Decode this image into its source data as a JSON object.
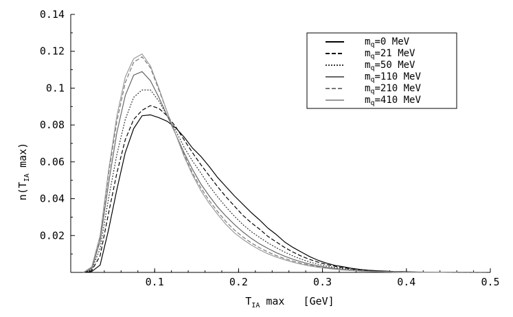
{
  "chart_data": {
    "type": "line",
    "title": "",
    "xlabel": "T_IA max [GeV]",
    "xlabel_parts": {
      "t": "T",
      "sub": "IA",
      "rest": " max   [GeV]"
    },
    "ylabel": "n(T_IA max)",
    "ylabel_parts": {
      "pre": "n(T",
      "sub": "IA",
      "post": " max)"
    },
    "xlim": [
      0.0,
      0.5
    ],
    "ylim": [
      0.0,
      0.14
    ],
    "xticks": [
      {
        "value": 0.1,
        "label": "0.1"
      },
      {
        "value": 0.2,
        "label": "0.2"
      },
      {
        "value": 0.3,
        "label": "0.3"
      },
      {
        "value": 0.4,
        "label": "0.4"
      },
      {
        "value": 0.5,
        "label": "0.5"
      }
    ],
    "yticks": [
      {
        "value": 0.02,
        "label": "0.02"
      },
      {
        "value": 0.04,
        "label": "0.04"
      },
      {
        "value": 0.06,
        "label": "0.06"
      },
      {
        "value": 0.08,
        "label": "0.08"
      },
      {
        "value": 0.1,
        "label": "0.1"
      },
      {
        "value": 0.12,
        "label": "0.12"
      },
      {
        "value": 0.14,
        "label": "0.14"
      }
    ],
    "grid": false,
    "legend_position": "top-right",
    "x": [
      0.015,
      0.025,
      0.035,
      0.045,
      0.055,
      0.065,
      0.075,
      0.085,
      0.095,
      0.105,
      0.115,
      0.125,
      0.135,
      0.145,
      0.155,
      0.165,
      0.175,
      0.185,
      0.195,
      0.205,
      0.215,
      0.225,
      0.235,
      0.245,
      0.255,
      0.265,
      0.275,
      0.285,
      0.295,
      0.305,
      0.315,
      0.325,
      0.335,
      0.345,
      0.355,
      0.365,
      0.375,
      0.385,
      0.395,
      0.405,
      0.415,
      0.425,
      0.435,
      0.445,
      0.455,
      0.465,
      0.475,
      0.485,
      0.495
    ],
    "series": [
      {
        "label_sub": "q",
        "label_value": "0 MeV",
        "color": "#000000",
        "dash": "",
        "values": [
          0.0,
          0.0005,
          0.004,
          0.023,
          0.045,
          0.065,
          0.078,
          0.085,
          0.0855,
          0.084,
          0.082,
          0.0785,
          0.0735,
          0.0675,
          0.063,
          0.0575,
          0.0515,
          0.0465,
          0.0415,
          0.037,
          0.0325,
          0.0285,
          0.024,
          0.0205,
          0.0165,
          0.0135,
          0.011,
          0.0085,
          0.0065,
          0.005,
          0.0038,
          0.003,
          0.0022,
          0.0016,
          0.0012,
          0.0009,
          0.0007,
          0.0005,
          0.0004,
          0.0003,
          0.0002,
          0.00015,
          0.0001,
          7e-05,
          5e-05,
          3e-05,
          2e-05,
          1e-05,
          0.0
        ]
      },
      {
        "label_sub": "q",
        "label_value": "21 MeV",
        "color": "#000000",
        "dash": "6,3",
        "values": [
          0.0,
          0.001,
          0.009,
          0.032,
          0.054,
          0.072,
          0.083,
          0.088,
          0.0905,
          0.089,
          0.085,
          0.079,
          0.072,
          0.065,
          0.0585,
          0.0525,
          0.0465,
          0.041,
          0.036,
          0.031,
          0.027,
          0.0235,
          0.0195,
          0.0165,
          0.0135,
          0.011,
          0.0088,
          0.007,
          0.0055,
          0.0043,
          0.0033,
          0.0025,
          0.0019,
          0.0014,
          0.001,
          0.0007,
          0.0005,
          0.0004,
          0.0003,
          0.0002,
          0.00015,
          0.0001,
          7e-05,
          5e-05,
          3e-05,
          2e-05,
          1e-05,
          0.0,
          0.0
        ]
      },
      {
        "label_sub": "q",
        "label_value": "50 MeV",
        "color": "#333333",
        "dash": "2,2",
        "values": [
          0.0,
          0.0015,
          0.013,
          0.04,
          0.064,
          0.083,
          0.095,
          0.099,
          0.099,
          0.093,
          0.085,
          0.077,
          0.068,
          0.0605,
          0.054,
          0.047,
          0.041,
          0.0355,
          0.0305,
          0.026,
          0.0222,
          0.019,
          0.016,
          0.0134,
          0.011,
          0.0089,
          0.0071,
          0.0056,
          0.0044,
          0.0034,
          0.0026,
          0.002,
          0.0015,
          0.0011,
          0.0008,
          0.0006,
          0.0004,
          0.0003,
          0.0002,
          0.00015,
          0.0001,
          7e-05,
          5e-05,
          3e-05,
          2e-05,
          1e-05,
          0.0,
          0.0,
          0.0
        ]
      },
      {
        "label_sub": "q",
        "label_value": "110 MeV",
        "color": "#666666",
        "dash": "",
        "values": [
          0.0,
          0.002,
          0.017,
          0.048,
          0.076,
          0.096,
          0.107,
          0.109,
          0.104,
          0.095,
          0.085,
          0.075,
          0.065,
          0.056,
          0.048,
          0.0415,
          0.0355,
          0.0305,
          0.026,
          0.022,
          0.0185,
          0.0155,
          0.013,
          0.0107,
          0.0088,
          0.0071,
          0.0057,
          0.0045,
          0.0035,
          0.0027,
          0.0021,
          0.0016,
          0.0012,
          0.0009,
          0.0007,
          0.0005,
          0.0004,
          0.0003,
          0.0002,
          0.00015,
          0.0001,
          7e-05,
          5e-05,
          3e-05,
          2e-05,
          1e-05,
          0.0,
          0.0,
          0.0
        ]
      },
      {
        "label_sub": "q",
        "label_value": "210 MeV",
        "color": "#777777",
        "dash": "6,3",
        "values": [
          0.0,
          0.0025,
          0.019,
          0.053,
          0.082,
          0.103,
          0.114,
          0.117,
          0.111,
          0.099,
          0.087,
          0.075,
          0.064,
          0.054,
          0.046,
          0.039,
          0.033,
          0.0275,
          0.023,
          0.0193,
          0.0161,
          0.0134,
          0.0111,
          0.0091,
          0.0075,
          0.0061,
          0.0049,
          0.0039,
          0.0031,
          0.0024,
          0.0018,
          0.0014,
          0.001,
          0.0008,
          0.0006,
          0.0004,
          0.0003,
          0.0002,
          0.00015,
          0.0001,
          7e-05,
          5e-05,
          3e-05,
          2e-05,
          1e-05,
          0.0,
          0.0,
          0.0,
          0.0
        ]
      },
      {
        "label_sub": "q",
        "label_value": "410 MeV",
        "color": "#999999",
        "dash": "",
        "values": [
          0.0,
          0.003,
          0.02,
          0.055,
          0.085,
          0.106,
          0.116,
          0.1185,
          0.112,
          0.1,
          0.087,
          0.075,
          0.063,
          0.053,
          0.0445,
          0.0375,
          0.0315,
          0.026,
          0.0215,
          0.018,
          0.0149,
          0.0123,
          0.0101,
          0.0083,
          0.0068,
          0.0055,
          0.0044,
          0.0035,
          0.0028,
          0.0022,
          0.0017,
          0.0013,
          0.001,
          0.0007,
          0.0005,
          0.0004,
          0.0003,
          0.0002,
          0.00015,
          0.0001,
          7e-05,
          5e-05,
          3e-05,
          2e-05,
          1e-05,
          0.0,
          0.0,
          0.0,
          0.0
        ]
      }
    ]
  }
}
